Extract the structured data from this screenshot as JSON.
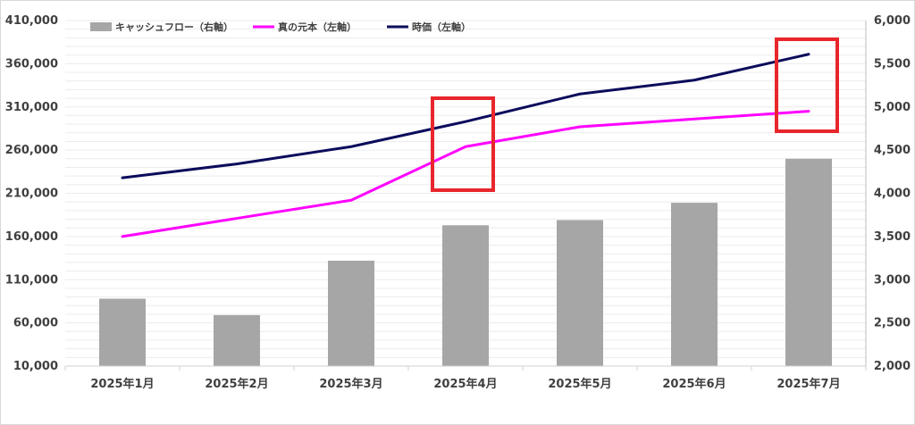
{
  "chart_data": {
    "type": "bar",
    "categories": [
      "2025年1月",
      "2025年2月",
      "2025年3月",
      "2025年4月",
      "2025年5月",
      "2025年6月",
      "2025年7月"
    ],
    "legend": [
      "キャッシュフロー（右軸）",
      "真の元本（左軸）",
      "時価（左軸）"
    ],
    "series": [
      {
        "name": "キャッシュフロー（右軸）",
        "type": "bar",
        "axis": "right",
        "color": "#a6a6a6",
        "values": [
          2780,
          2590,
          3220,
          3630,
          3690,
          3890,
          4400
        ]
      },
      {
        "name": "真の元本（左軸）",
        "type": "line",
        "axis": "left",
        "color": "#ff00ff",
        "values": [
          160000,
          181000,
          202000,
          264000,
          287000,
          296000,
          305000
        ]
      },
      {
        "name": "時価（左軸）",
        "type": "line",
        "axis": "left",
        "color": "#0c0c5c",
        "values": [
          228000,
          244000,
          264000,
          293000,
          325000,
          341000,
          371000
        ]
      }
    ],
    "left_axis": {
      "min": 10000,
      "max": 410000,
      "ticks": [
        "10,000",
        "60,000",
        "110,000",
        "160,000",
        "210,000",
        "260,000",
        "310,000",
        "360,000",
        "410,000"
      ]
    },
    "right_axis": {
      "min": 2000,
      "max": 6000,
      "ticks": [
        "2,000",
        "2,500",
        "3,000",
        "3,500",
        "4,000",
        "4,500",
        "5,000",
        "5,500",
        "6,000"
      ]
    },
    "highlight_color": "#e8262c",
    "highlights": [
      "2025年4月",
      "2025年7月"
    ],
    "grid": true,
    "legend_position": "top-left"
  }
}
